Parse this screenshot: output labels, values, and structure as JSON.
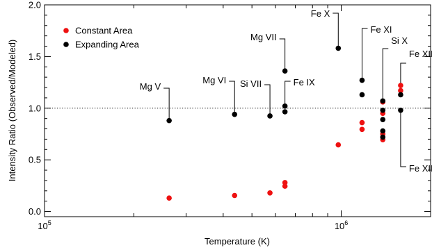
{
  "chart_data": {
    "type": "scatter",
    "xlabel": "Temperature (K)",
    "ylabel": "Intensity Ratio (Observed/Modeled)",
    "x_scale": "log",
    "xlim": [
      100000,
      2000000
    ],
    "ylim": [
      -0.05,
      2.0
    ],
    "x_major_ticks": [
      {
        "value": 100000,
        "base": "10",
        "exp": "5"
      },
      {
        "value": 1000000,
        "base": "10",
        "exp": "6"
      }
    ],
    "y_ticks": [
      {
        "value": 0.0,
        "label": "0.0"
      },
      {
        "value": 0.5,
        "label": "0.5"
      },
      {
        "value": 1.0,
        "label": "1.0"
      },
      {
        "value": 1.5,
        "label": "1.5"
      },
      {
        "value": 2.0,
        "label": "2.0"
      }
    ],
    "reference_line": {
      "y": 1.0,
      "style": "dotted"
    },
    "legend": {
      "position": "top-left",
      "entries": [
        {
          "label": "Constant Area",
          "color": "#ee1111"
        },
        {
          "label": "Expanding Area",
          "color": "#000000"
        }
      ]
    },
    "series": [
      {
        "name": "Constant Area",
        "color": "#ee1111",
        "points": [
          {
            "x": 263000,
            "y": 0.13
          },
          {
            "x": 437000,
            "y": 0.155
          },
          {
            "x": 575000,
            "y": 0.18
          },
          {
            "x": 646000,
            "y": 0.28
          },
          {
            "x": 646000,
            "y": 0.245
          },
          {
            "x": 977000,
            "y": 0.645
          },
          {
            "x": 1175000,
            "y": 0.86
          },
          {
            "x": 1175000,
            "y": 0.795
          },
          {
            "x": 1380000,
            "y": 1.06
          },
          {
            "x": 1380000,
            "y": 0.95
          },
          {
            "x": 1380000,
            "y": 0.75
          },
          {
            "x": 1380000,
            "y": 0.695
          },
          {
            "x": 1585000,
            "y": 1.22
          },
          {
            "x": 1585000,
            "y": 1.17
          }
        ]
      },
      {
        "name": "Expanding Area",
        "color": "#000000",
        "points": [
          {
            "x": 263000,
            "y": 0.88
          },
          {
            "x": 437000,
            "y": 0.94
          },
          {
            "x": 575000,
            "y": 0.925
          },
          {
            "x": 646000,
            "y": 1.36
          },
          {
            "x": 646000,
            "y": 1.02
          },
          {
            "x": 646000,
            "y": 0.965
          },
          {
            "x": 977000,
            "y": 1.58
          },
          {
            "x": 1175000,
            "y": 1.27
          },
          {
            "x": 1175000,
            "y": 1.13
          },
          {
            "x": 1380000,
            "y": 1.07
          },
          {
            "x": 1380000,
            "y": 0.98
          },
          {
            "x": 1380000,
            "y": 0.89
          },
          {
            "x": 1380000,
            "y": 0.78
          },
          {
            "x": 1380000,
            "y": 0.72
          },
          {
            "x": 1585000,
            "y": 1.13
          },
          {
            "x": 1585000,
            "y": 0.98
          }
        ]
      }
    ],
    "annotations": [
      {
        "label": "Mg V",
        "x": 263000,
        "y": 0.88
      },
      {
        "label": "Mg VI",
        "x": 437000,
        "y": 0.94
      },
      {
        "label": "Si VII",
        "x": 575000,
        "y": 0.925
      },
      {
        "label": "Mg VII",
        "x": 646000,
        "y": 1.36
      },
      {
        "label": "Fe IX",
        "x": 646000,
        "y": 1.02
      },
      {
        "label": "Fe X",
        "x": 977000,
        "y": 1.58
      },
      {
        "label": "Fe XI",
        "x": 1175000,
        "y": 1.27
      },
      {
        "label": "Si X",
        "x": 1380000,
        "y": 1.07
      },
      {
        "label": "Fe XII",
        "x": 1585000,
        "y": 1.13
      },
      {
        "label": "Fe XIII",
        "x": 1585000,
        "y": 0.98
      }
    ]
  }
}
